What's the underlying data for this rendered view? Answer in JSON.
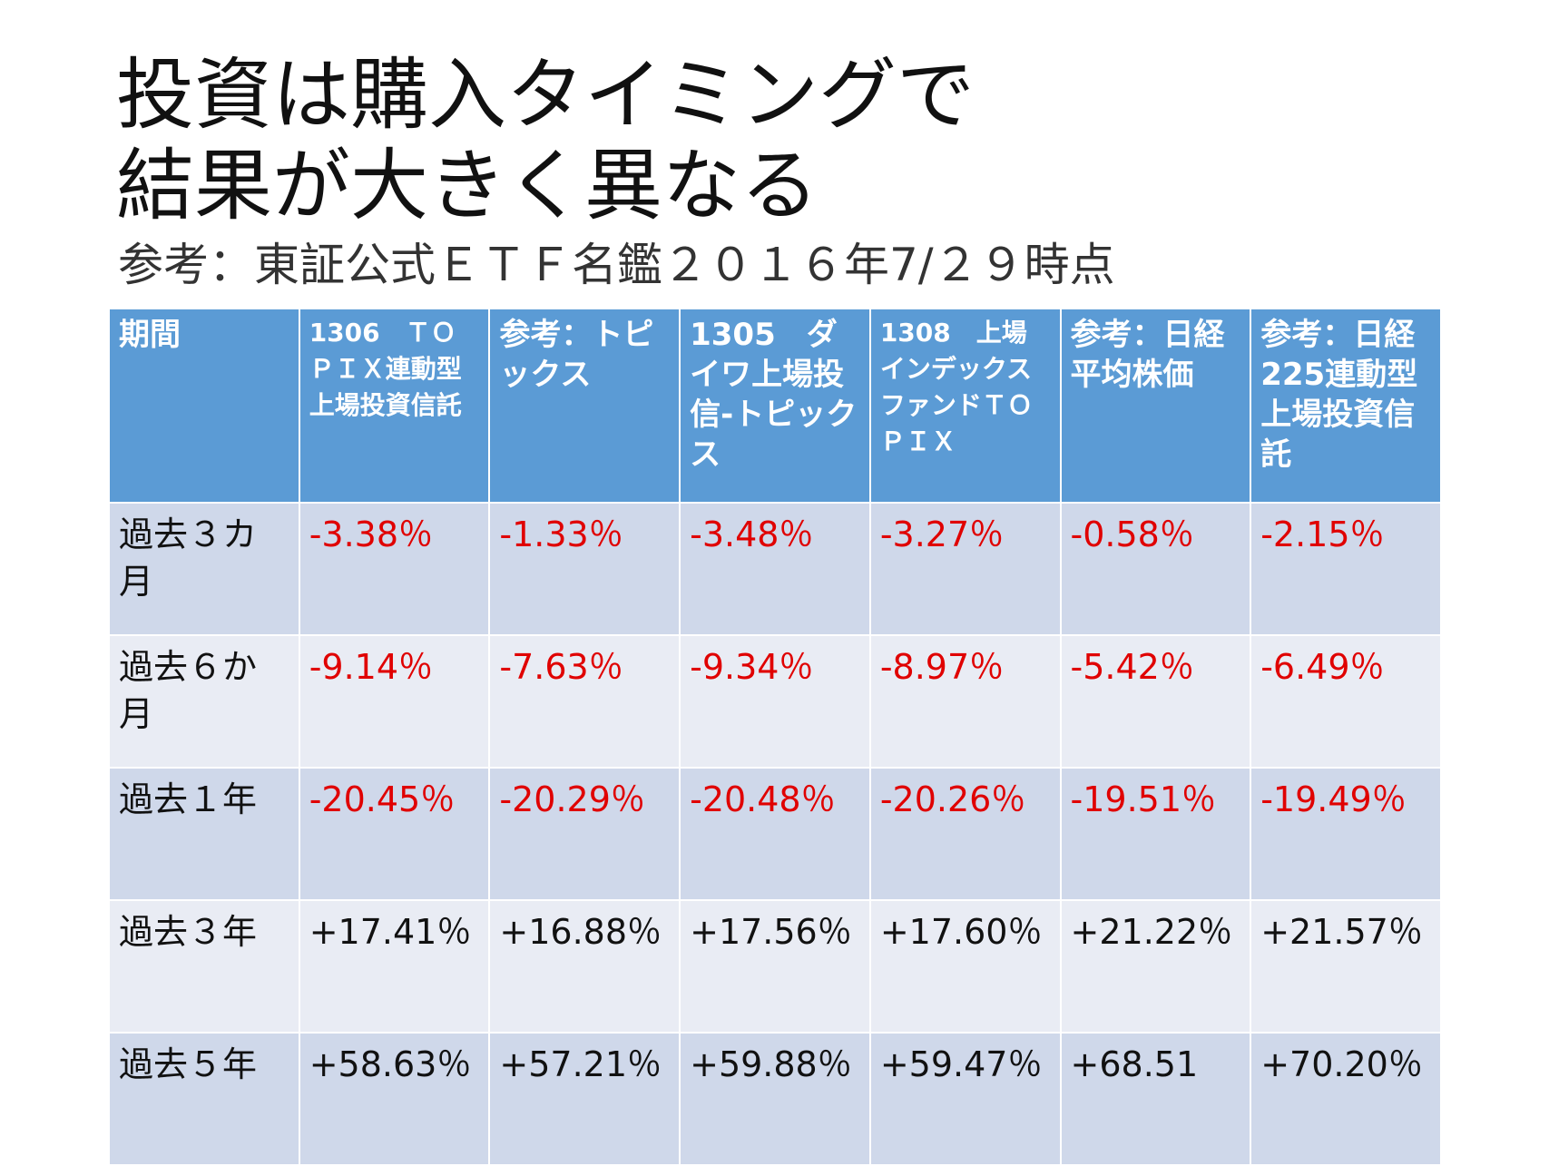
{
  "header": {
    "title_lines": [
      "投資は購入タイミングで",
      "結果が大きく異なる"
    ],
    "subtitle": "参考：東証公式ＥＴＦ名鑑２０１６年7/２９時点"
  },
  "table": {
    "columns": [
      "期間",
      "1306　ＴＯＰＩＸ連動型上場投資信託",
      "参考：トピックス",
      "1305　ダイワ上場投信-トピックス",
      "1308　上場インデックスファンドＴＯＰＩＸ",
      "参考：日経平均株価",
      "参考：日経225連動型上場投資信託"
    ],
    "rows": [
      [
        "過去３カ月",
        "-3.38％",
        "-1.33％",
        "-3.48％",
        "-3.27％",
        "-0.58％",
        "-2.15％"
      ],
      [
        "過去６か月",
        "-9.14％",
        "-7.63％",
        "-9.34％",
        "-8.97％",
        "-5.42％",
        "-6.49％"
      ],
      [
        "過去１年",
        "-20.45％",
        "-20.29％",
        "-20.48％",
        "-20.26％",
        "-19.51％",
        "-19.49％"
      ],
      [
        "過去３年",
        "+17.41％",
        "+16.88％",
        "+17.56％",
        "+17.60％",
        "+21.22％",
        "+21.57％"
      ],
      [
        "過去５年",
        "+58.63％",
        "+57.21％",
        "+59.88％",
        "+59.47％",
        "+68.51",
        "+70.20％"
      ]
    ]
  }
}
